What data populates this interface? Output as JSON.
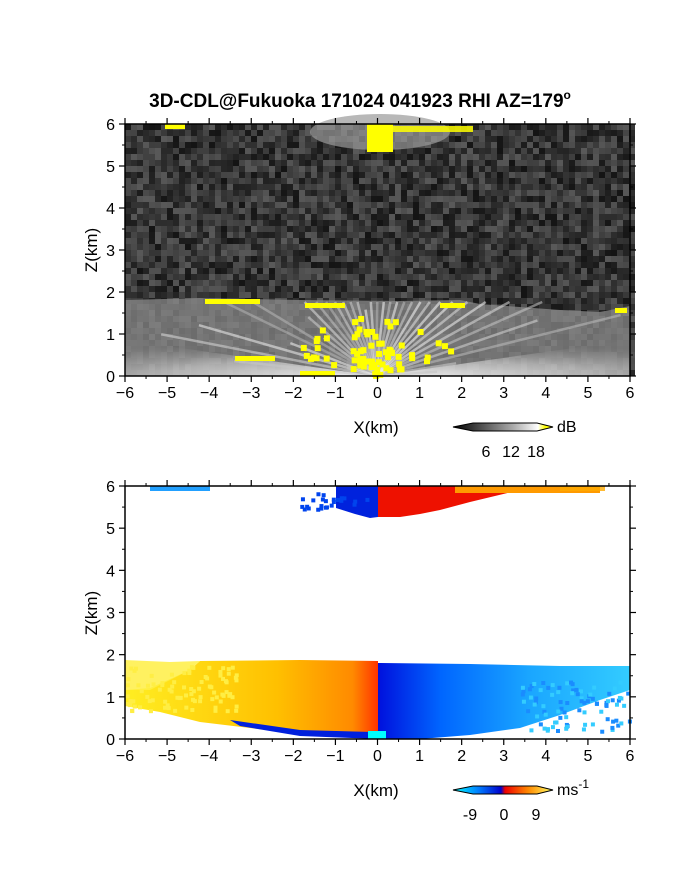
{
  "chart_data": [
    {
      "type": "heatmap",
      "title": "3D-CDL@Fukuoka 171024 041923 RHI AZ=179",
      "title_superscript": "o",
      "xlabel": "X(km)",
      "ylabel": "Z(km)",
      "xlim": [
        -6,
        6
      ],
      "ylim": [
        0,
        6
      ],
      "x_ticks": [
        "-6",
        "-5",
        "-4",
        "-3",
        "-2",
        "-1",
        "0",
        "1",
        "2",
        "3",
        "4",
        "5",
        "6"
      ],
      "y_ticks": [
        "0",
        "1",
        "2",
        "3",
        "4",
        "5",
        "6"
      ],
      "colorbar": {
        "label": "dB",
        "tick_labels": [
          "6",
          "12",
          "18"
        ],
        "colors": [
          "#000000",
          "#444444",
          "#888888",
          "#cccccc",
          "#ffffff",
          "#ffff00"
        ]
      },
      "layers": [
        {
          "name": "background noise",
          "z_range": [
            0,
            6
          ],
          "mean_db": 3
        },
        {
          "name": "boundary layer echo",
          "z_top_km": 1.75,
          "x_range": [
            -6,
            6
          ],
          "mean_db": 12
        },
        {
          "name": "upper echo",
          "z_range": [
            5.5,
            6
          ],
          "x_range": [
            -1,
            1.5
          ],
          "mean_db": 16
        }
      ]
    },
    {
      "type": "heatmap",
      "title": "",
      "xlabel": "X(km)",
      "ylabel": "Z(km)",
      "xlim": [
        -6,
        6
      ],
      "ylim": [
        0,
        6
      ],
      "x_ticks": [
        "-6",
        "-5",
        "-4",
        "-3",
        "-2",
        "-1",
        "0",
        "1",
        "2",
        "3",
        "4",
        "5",
        "6"
      ],
      "y_ticks": [
        "0",
        "1",
        "2",
        "3",
        "4",
        "5",
        "6"
      ],
      "colorbar": {
        "label": "ms",
        "label_superscript": "-1",
        "tick_labels": [
          "-9",
          "0",
          "9"
        ],
        "colors": [
          "#00ffff",
          "#0077ff",
          "#0000dd",
          "#ff0000",
          "#ff9900",
          "#ffff66"
        ]
      },
      "layers": [
        {
          "name": "boundary layer velocity",
          "z_top_km": 1.8,
          "x_range": [
            -6,
            6
          ],
          "velocity_left_ms": 7,
          "velocity_right_ms": -6
        },
        {
          "name": "upper layer velocity",
          "z_range": [
            5.3,
            6
          ],
          "x_range": [
            -6,
            6
          ],
          "velocity_left_ms": -8,
          "velocity_right_ms": 8
        }
      ]
    }
  ]
}
